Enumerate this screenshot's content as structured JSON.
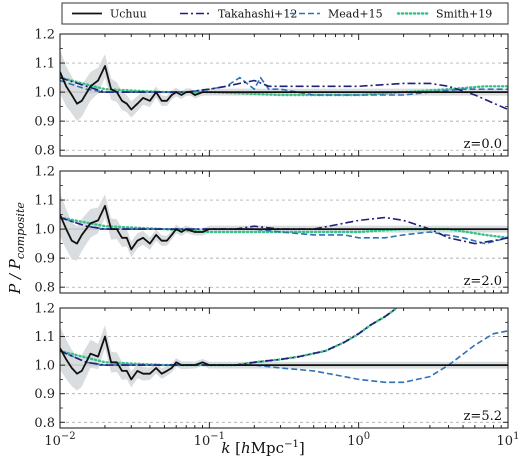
{
  "colors": {
    "Uchuu": "#111111",
    "Takahashi+12": "#1f1f7a",
    "Mead+15": "#2f72b8",
    "Smith+19": "#3cc08a",
    "band": "#d6d9dc",
    "grid": "#999999"
  },
  "chart_data": {
    "type": "line",
    "x_scale": "log",
    "xlim": [
      0.01,
      10
    ],
    "ylim": [
      0.78,
      1.2
    ],
    "xlabel": "k [hMpc⁻¹]",
    "ylabel": "P / P",
    "ylabel_sub": "composite",
    "x_ticks": [
      {
        "value": 0.01,
        "base": "10",
        "exp": "−2"
      },
      {
        "value": 0.1,
        "base": "10",
        "exp": "−1"
      },
      {
        "value": 1,
        "base": "10",
        "exp": "0"
      },
      {
        "value": 10,
        "base": "10",
        "exp": "1"
      }
    ],
    "y_ticks": [
      0.8,
      0.9,
      1.0,
      1.1,
      1.2
    ],
    "y_tick_labels": [
      "0.8",
      "0.9",
      "1.0",
      "1.1",
      "1.2"
    ],
    "grid": "horizontal dashed",
    "legend": {
      "placement": "top",
      "entries": [
        {
          "name": "Uchuu",
          "dash": "solid"
        },
        {
          "name": "Takahashi+12",
          "dash": "dashdot"
        },
        {
          "name": "Mead+15",
          "dash": "dashed"
        },
        {
          "name": "Smith+19",
          "dash": "dotted"
        }
      ]
    },
    "panels": [
      {
        "label": "z=0.0",
        "series": [
          {
            "name": "Uchuu",
            "x": [
              0.01,
              0.011,
              0.012,
              0.013,
              0.014,
              0.016,
              0.018,
              0.02,
              0.022,
              0.024,
              0.026,
              0.028,
              0.03,
              0.033,
              0.036,
              0.04,
              0.044,
              0.048,
              0.052,
              0.056,
              0.06,
              0.065,
              0.07,
              0.075,
              0.08,
              0.09,
              0.1,
              0.15,
              0.2,
              0.3,
              0.5,
              1,
              2,
              4,
              10
            ],
            "y": [
              1.07,
              1.02,
              0.99,
              0.96,
              0.97,
              1.02,
              1.04,
              1.09,
              1.01,
              1.0,
              0.97,
              0.96,
              0.94,
              0.96,
              0.98,
              0.97,
              1.0,
              0.97,
              0.97,
              0.99,
              1.0,
              0.99,
              1.0,
              1.0,
              0.99,
              1.0,
              1.0,
              1.0,
              1.0,
              1.0,
              1.0,
              1.0,
              1.0,
              1.0,
              1.0
            ]
          },
          {
            "name": "Takahashi+12",
            "x": [
              0.01,
              0.015,
              0.02,
              0.03,
              0.05,
              0.07,
              0.1,
              0.13,
              0.16,
              0.2,
              0.25,
              0.3,
              0.5,
              1,
              2,
              3,
              4,
              6,
              10
            ],
            "y": [
              1.05,
              1.02,
              1.0,
              1.0,
              1.0,
              1.0,
              1.01,
              1.02,
              1.03,
              1.04,
              1.02,
              1.02,
              1.02,
              1.02,
              1.03,
              1.03,
              1.02,
              0.99,
              0.94
            ]
          },
          {
            "name": "Mead+15",
            "x": [
              0.01,
              0.015,
              0.02,
              0.03,
              0.05,
              0.07,
              0.1,
              0.13,
              0.16,
              0.2,
              0.22,
              0.25,
              0.3,
              0.5,
              1,
              2,
              3,
              5,
              10
            ],
            "y": [
              1.04,
              1.01,
              1.0,
              1.0,
              1.0,
              1.0,
              1.01,
              1.02,
              1.05,
              1.01,
              1.05,
              1.01,
              1.01,
              0.99,
              0.99,
              0.99,
              1.0,
              1.01,
              1.01
            ]
          },
          {
            "name": "Smith+19",
            "x": [
              0.01,
              0.02,
              0.05,
              0.1,
              0.3,
              0.6,
              1,
              2,
              4,
              7,
              10
            ],
            "y": [
              1.05,
              1.01,
              1.0,
              1.0,
              0.99,
              0.99,
              0.99,
              1.0,
              1.01,
              1.02,
              1.02
            ]
          }
        ]
      },
      {
        "label": "z=2.0",
        "series": [
          {
            "name": "Uchuu",
            "x": [
              0.01,
              0.011,
              0.012,
              0.013,
              0.014,
              0.016,
              0.018,
              0.02,
              0.022,
              0.024,
              0.026,
              0.028,
              0.03,
              0.033,
              0.036,
              0.04,
              0.044,
              0.048,
              0.052,
              0.056,
              0.06,
              0.065,
              0.07,
              0.08,
              0.09,
              0.1,
              0.15,
              0.2,
              0.3,
              0.5,
              1,
              2,
              4,
              10
            ],
            "y": [
              1.05,
              1.0,
              0.96,
              0.95,
              0.98,
              1.02,
              1.03,
              1.08,
              1.0,
              1.0,
              0.97,
              0.97,
              0.93,
              0.96,
              0.97,
              0.95,
              0.98,
              0.96,
              0.96,
              0.98,
              1.0,
              0.99,
              1.0,
              0.99,
              0.99,
              1.0,
              1.0,
              1.0,
              1.0,
              1.0,
              1.0,
              1.0,
              1.0,
              1.0
            ]
          },
          {
            "name": "Takahashi+12",
            "x": [
              0.01,
              0.015,
              0.02,
              0.03,
              0.05,
              0.07,
              0.1,
              0.15,
              0.2,
              0.3,
              0.5,
              1,
              1.5,
              2,
              3,
              4,
              6,
              8,
              10
            ],
            "y": [
              1.04,
              1.01,
              1.0,
              1.0,
              1.0,
              1.0,
              1.0,
              1.0,
              1.01,
              1.0,
              1.0,
              1.03,
              1.04,
              1.03,
              1.0,
              0.97,
              0.95,
              0.96,
              0.97
            ]
          },
          {
            "name": "Mead+15",
            "x": [
              0.01,
              0.015,
              0.02,
              0.03,
              0.05,
              0.07,
              0.1,
              0.15,
              0.2,
              0.3,
              0.5,
              0.8,
              1,
              1.5,
              2,
              3,
              5,
              7,
              10
            ],
            "y": [
              1.04,
              1.01,
              1.0,
              1.0,
              1.0,
              1.0,
              1.0,
              1.0,
              1.0,
              0.99,
              0.98,
              0.98,
              0.97,
              0.97,
              0.98,
              0.99,
              0.97,
              0.95,
              0.97
            ]
          },
          {
            "name": "Smith+19",
            "x": [
              0.01,
              0.02,
              0.05,
              0.1,
              0.3,
              0.6,
              1,
              2,
              4,
              7,
              10
            ],
            "y": [
              1.04,
              1.01,
              1.0,
              0.99,
              0.99,
              0.99,
              0.99,
              1.0,
              1.0,
              0.98,
              0.97
            ]
          }
        ]
      },
      {
        "label": "z=5.2",
        "series": [
          {
            "name": "Uchuu",
            "x": [
              0.01,
              0.011,
              0.012,
              0.013,
              0.014,
              0.016,
              0.018,
              0.02,
              0.022,
              0.024,
              0.026,
              0.028,
              0.03,
              0.033,
              0.036,
              0.04,
              0.044,
              0.048,
              0.052,
              0.056,
              0.06,
              0.065,
              0.07,
              0.08,
              0.09,
              0.1,
              0.15,
              0.2,
              0.3,
              0.5,
              1,
              2,
              4,
              10
            ],
            "y": [
              1.06,
              1.02,
              0.99,
              0.97,
              0.98,
              1.04,
              1.03,
              1.1,
              1.01,
              1.01,
              0.98,
              0.98,
              0.95,
              0.98,
              0.97,
              0.97,
              0.99,
              0.97,
              0.98,
              0.99,
              1.01,
              1.0,
              1.0,
              1.0,
              1.01,
              1.0,
              1.0,
              1.0,
              1.0,
              1.0,
              1.0,
              1.0,
              1.0,
              1.0
            ]
          },
          {
            "name": "Takahashi+12",
            "x": [
              0.01,
              0.015,
              0.02,
              0.03,
              0.05,
              0.07,
              0.1,
              0.15,
              0.2,
              0.3,
              0.4,
              0.6,
              0.8,
              1,
              1.2,
              1.5,
              1.8
            ],
            "y": [
              1.05,
              1.01,
              1.0,
              1.0,
              1.0,
              1.0,
              1.0,
              1.0,
              1.01,
              1.02,
              1.03,
              1.05,
              1.08,
              1.11,
              1.14,
              1.17,
              1.2
            ]
          },
          {
            "name": "Mead+15",
            "x": [
              0.01,
              0.015,
              0.02,
              0.03,
              0.05,
              0.07,
              0.1,
              0.15,
              0.2,
              0.3,
              0.5,
              0.8,
              1,
              1.5,
              2,
              3,
              4,
              6,
              8,
              10
            ],
            "y": [
              1.05,
              1.01,
              1.0,
              1.0,
              1.0,
              1.0,
              1.0,
              1.0,
              1.0,
              0.99,
              0.98,
              0.96,
              0.95,
              0.94,
              0.94,
              0.96,
              1.0,
              1.07,
              1.11,
              1.12
            ]
          },
          {
            "name": "Smith+19",
            "x": [
              0.01,
              0.02,
              0.05,
              0.1,
              0.15,
              0.2,
              0.3,
              0.4,
              0.6,
              0.8,
              1,
              1.2,
              1.5,
              1.8
            ],
            "y": [
              1.05,
              1.01,
              1.0,
              1.0,
              1.0,
              1.01,
              1.02,
              1.03,
              1.05,
              1.08,
              1.11,
              1.14,
              1.17,
              1.2
            ]
          }
        ]
      }
    ]
  }
}
